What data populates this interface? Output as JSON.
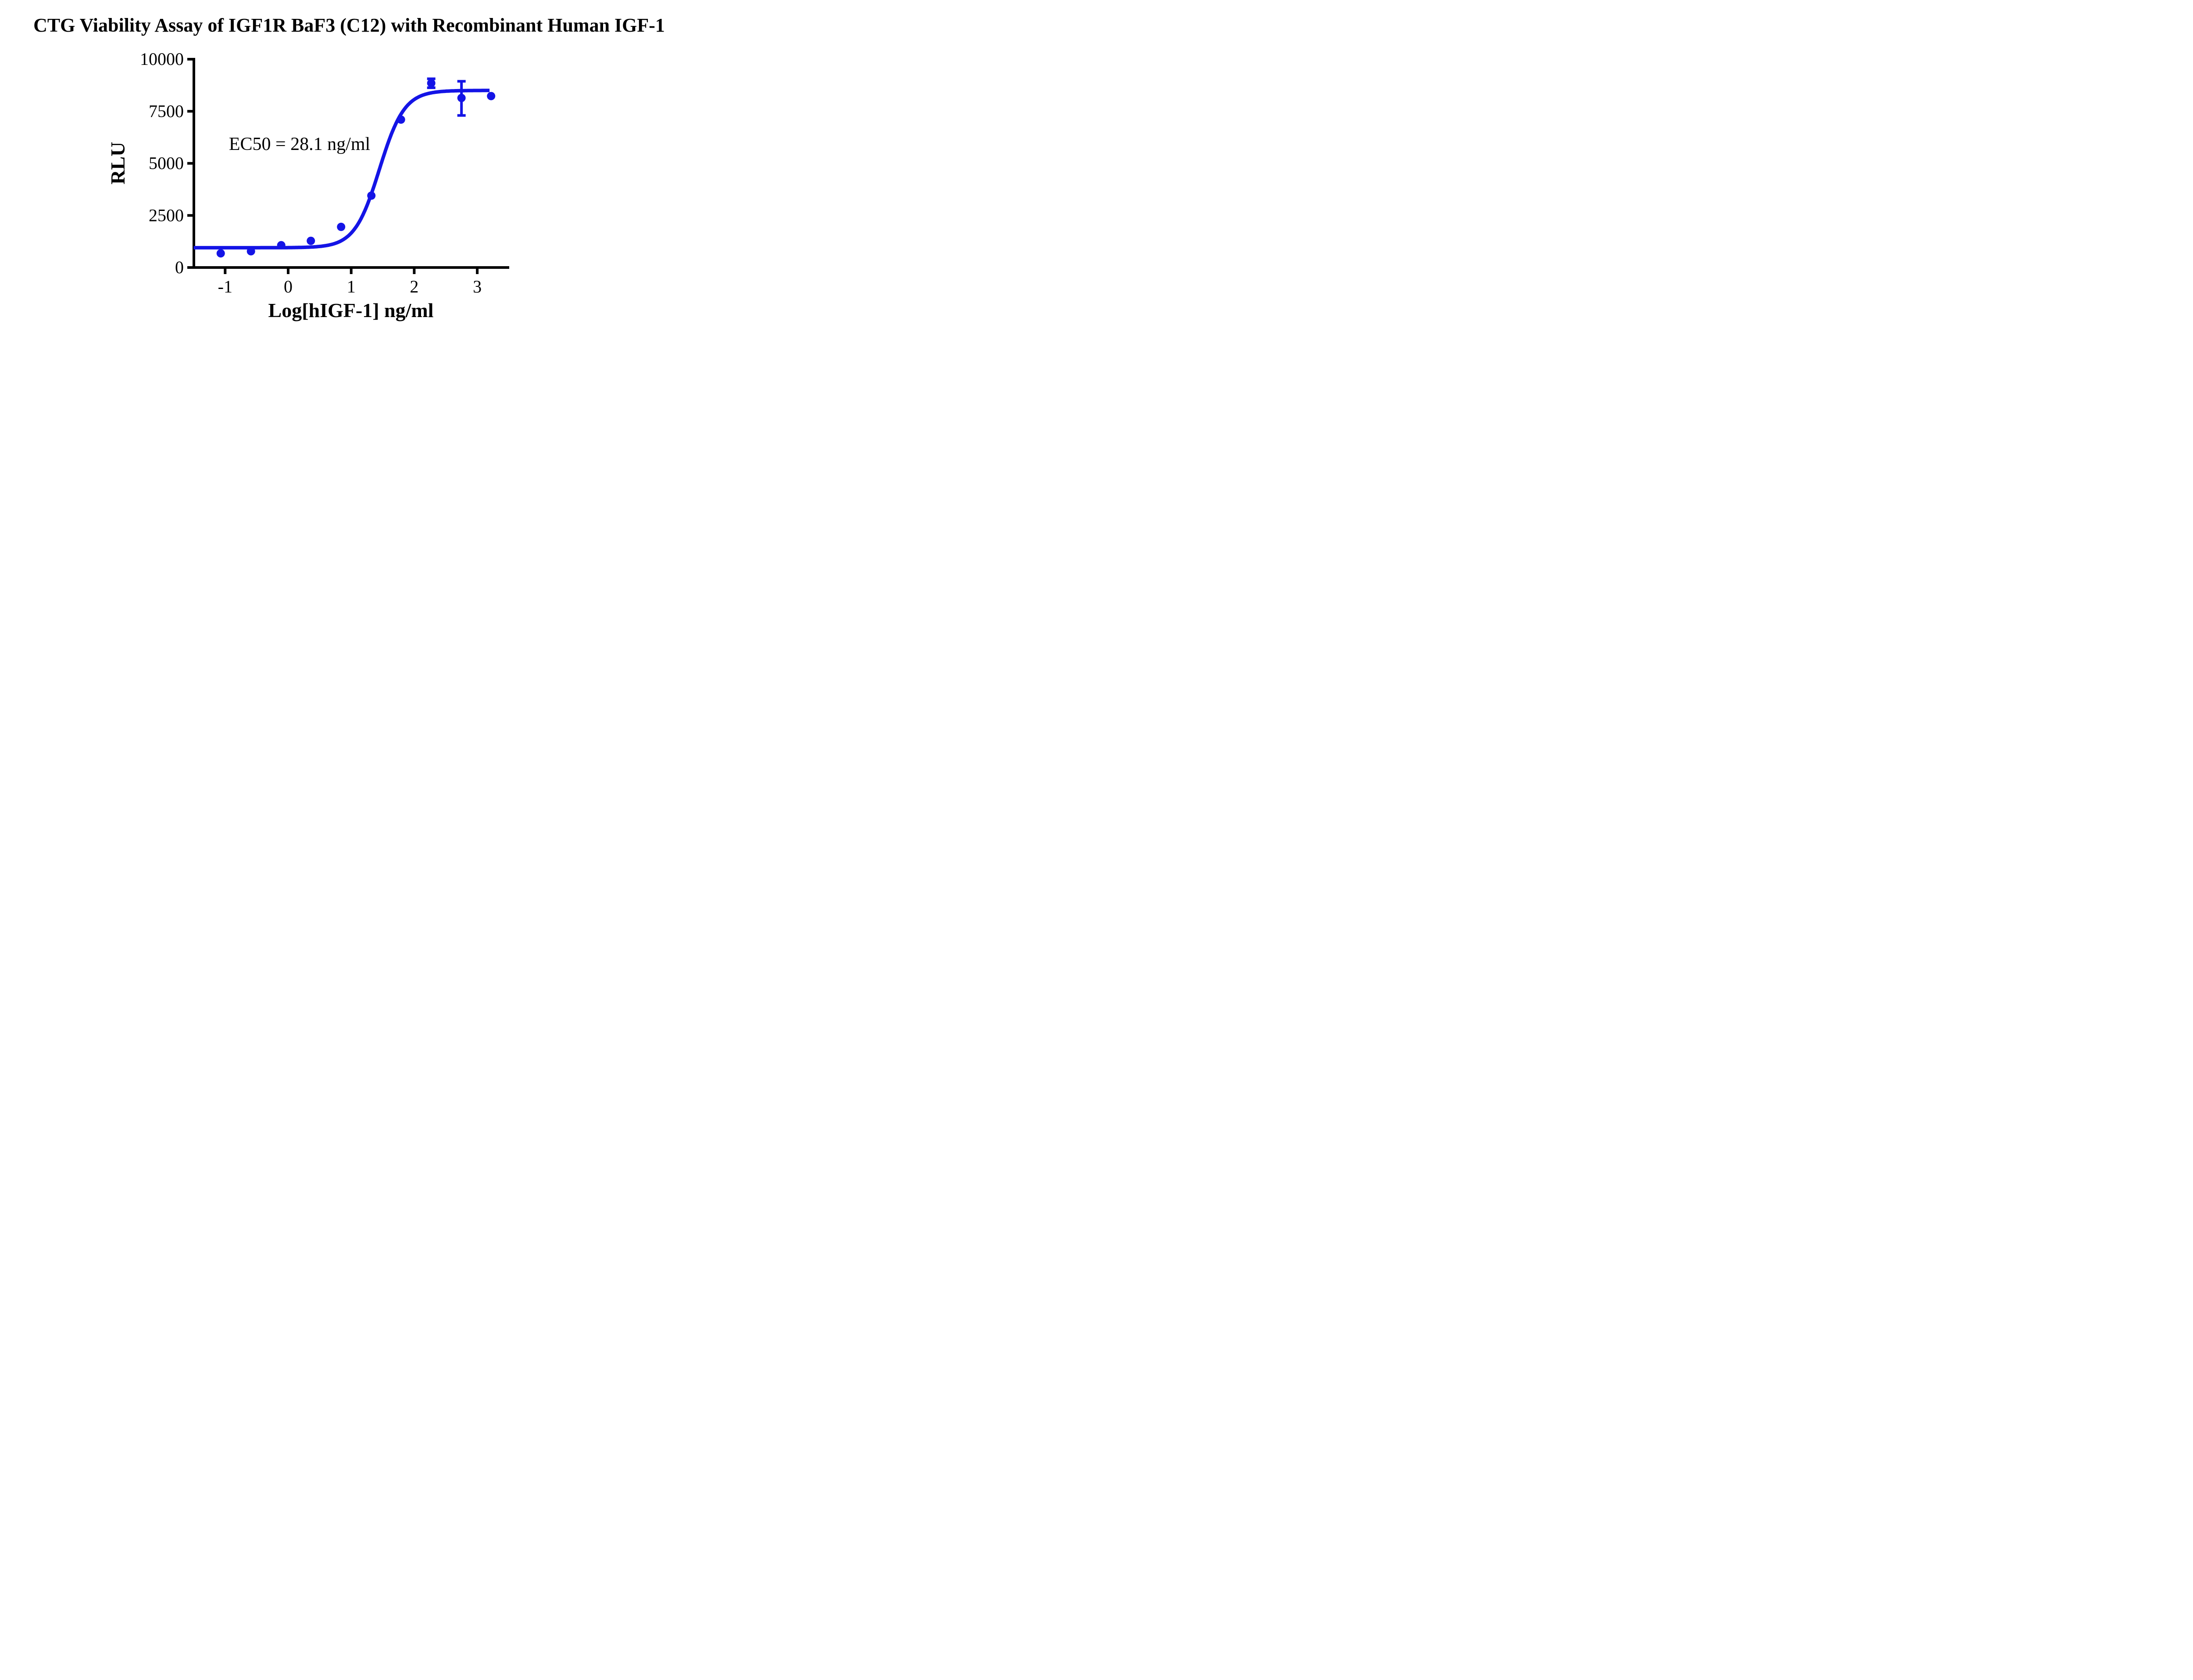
{
  "title": "CTG Viability Assay of IGF1R BaF3 (C12) with Recombinant Human IGF-1",
  "colors": {
    "curve": "#1414E6",
    "marker": "#1414E6",
    "axis": "#000000",
    "text": "#000000",
    "background": "#FFFFFF"
  },
  "chart_data": {
    "type": "scatter",
    "title": "CTG Viability Assay of IGF1R BaF3 (C12) with Recombinant Human IGF-1",
    "xlabel": "Log[hIGF-1] ng/ml",
    "ylabel": "RLU",
    "xlim": [
      -1.5,
      3.5
    ],
    "ylim": [
      0,
      10000
    ],
    "x_ticks": [
      -1,
      0,
      1,
      2,
      3
    ],
    "y_ticks": [
      0,
      2500,
      5000,
      7500,
      10000
    ],
    "grid": false,
    "legend": "none",
    "ec50_label": "EC50 = 28.1 ng/ml",
    "ec50_value_ng_ml": 28.1,
    "series": [
      {
        "name": "Recombinant Human IGF-1",
        "marker": "circle",
        "color": "#1414E6",
        "points": [
          {
            "x": -1.07,
            "y": 680
          },
          {
            "x": -0.59,
            "y": 780
          },
          {
            "x": -0.11,
            "y": 1070
          },
          {
            "x": 0.36,
            "y": 1280
          },
          {
            "x": 0.84,
            "y": 1950
          },
          {
            "x": 1.32,
            "y": 3450
          },
          {
            "x": 1.79,
            "y": 7100
          },
          {
            "x": 2.27,
            "y": 8850,
            "err_plus": 210,
            "err_minus": 220
          },
          {
            "x": 2.75,
            "y": 8140,
            "err_plus": 800,
            "err_minus": 840
          },
          {
            "x": 3.22,
            "y": 8230
          }
        ]
      }
    ],
    "fit_curve": {
      "model": "sigmoidal dose-response (variable slope)",
      "bottom": 950,
      "top": 8500,
      "log_ec50": 1.449,
      "hill_slope": 2.2,
      "x_start": -1.5,
      "x_end": 3.205
    }
  }
}
